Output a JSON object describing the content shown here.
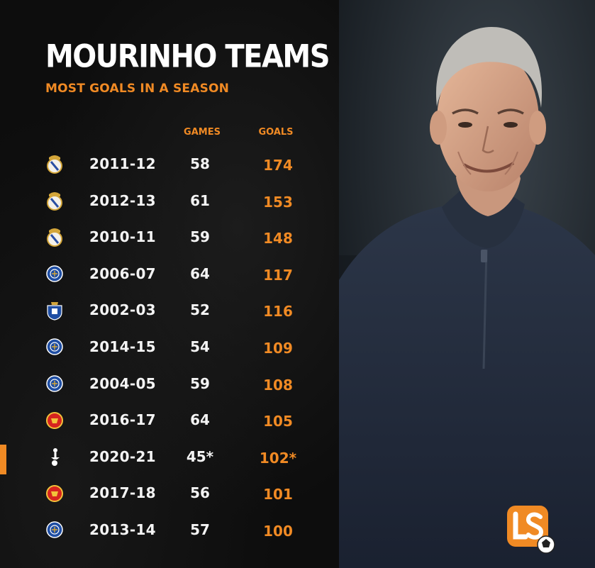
{
  "title": "MOURINHO TEAMS",
  "subtitle": "MOST GOALS IN A SEASON",
  "headers": {
    "games": "GAMES",
    "goals": "GOALS"
  },
  "colors": {
    "accent": "#f08a24",
    "text": "#f4f4f4",
    "background": "#0d0d0d"
  },
  "logo": {
    "icon": "ls-logo-icon"
  },
  "chart_data": {
    "type": "table",
    "title": "MOURINHO TEAMS",
    "subtitle": "MOST GOALS IN A SEASON",
    "columns": [
      "",
      "",
      "GAMES",
      "GOALS"
    ],
    "rows": [
      {
        "club_icon": "real-madrid-crest-icon",
        "season": "2011-12",
        "games": "58",
        "goals": "174"
      },
      {
        "club_icon": "real-madrid-crest-icon",
        "season": "2012-13",
        "games": "61",
        "goals": "153"
      },
      {
        "club_icon": "real-madrid-crest-icon",
        "season": "2010-11",
        "games": "59",
        "goals": "148"
      },
      {
        "club_icon": "chelsea-crest-icon",
        "season": "2006-07",
        "games": "64",
        "goals": "117"
      },
      {
        "club_icon": "porto-crest-icon",
        "season": "2002-03",
        "games": "52",
        "goals": "116"
      },
      {
        "club_icon": "chelsea-crest-icon",
        "season": "2014-15",
        "games": "54",
        "goals": "109"
      },
      {
        "club_icon": "chelsea-crest-icon",
        "season": "2004-05",
        "games": "59",
        "goals": "108"
      },
      {
        "club_icon": "man-united-crest-icon",
        "season": "2016-17",
        "games": "64",
        "goals": "105"
      },
      {
        "club_icon": "tottenham-crest-icon",
        "season": "2020-21",
        "games": "45*",
        "goals": "102*"
      },
      {
        "club_icon": "man-united-crest-icon",
        "season": "2017-18",
        "games": "56",
        "goals": "101"
      },
      {
        "club_icon": "chelsea-crest-icon",
        "season": "2013-14",
        "games": "57",
        "goals": "100"
      }
    ],
    "highlighted_row": "2020-21"
  }
}
